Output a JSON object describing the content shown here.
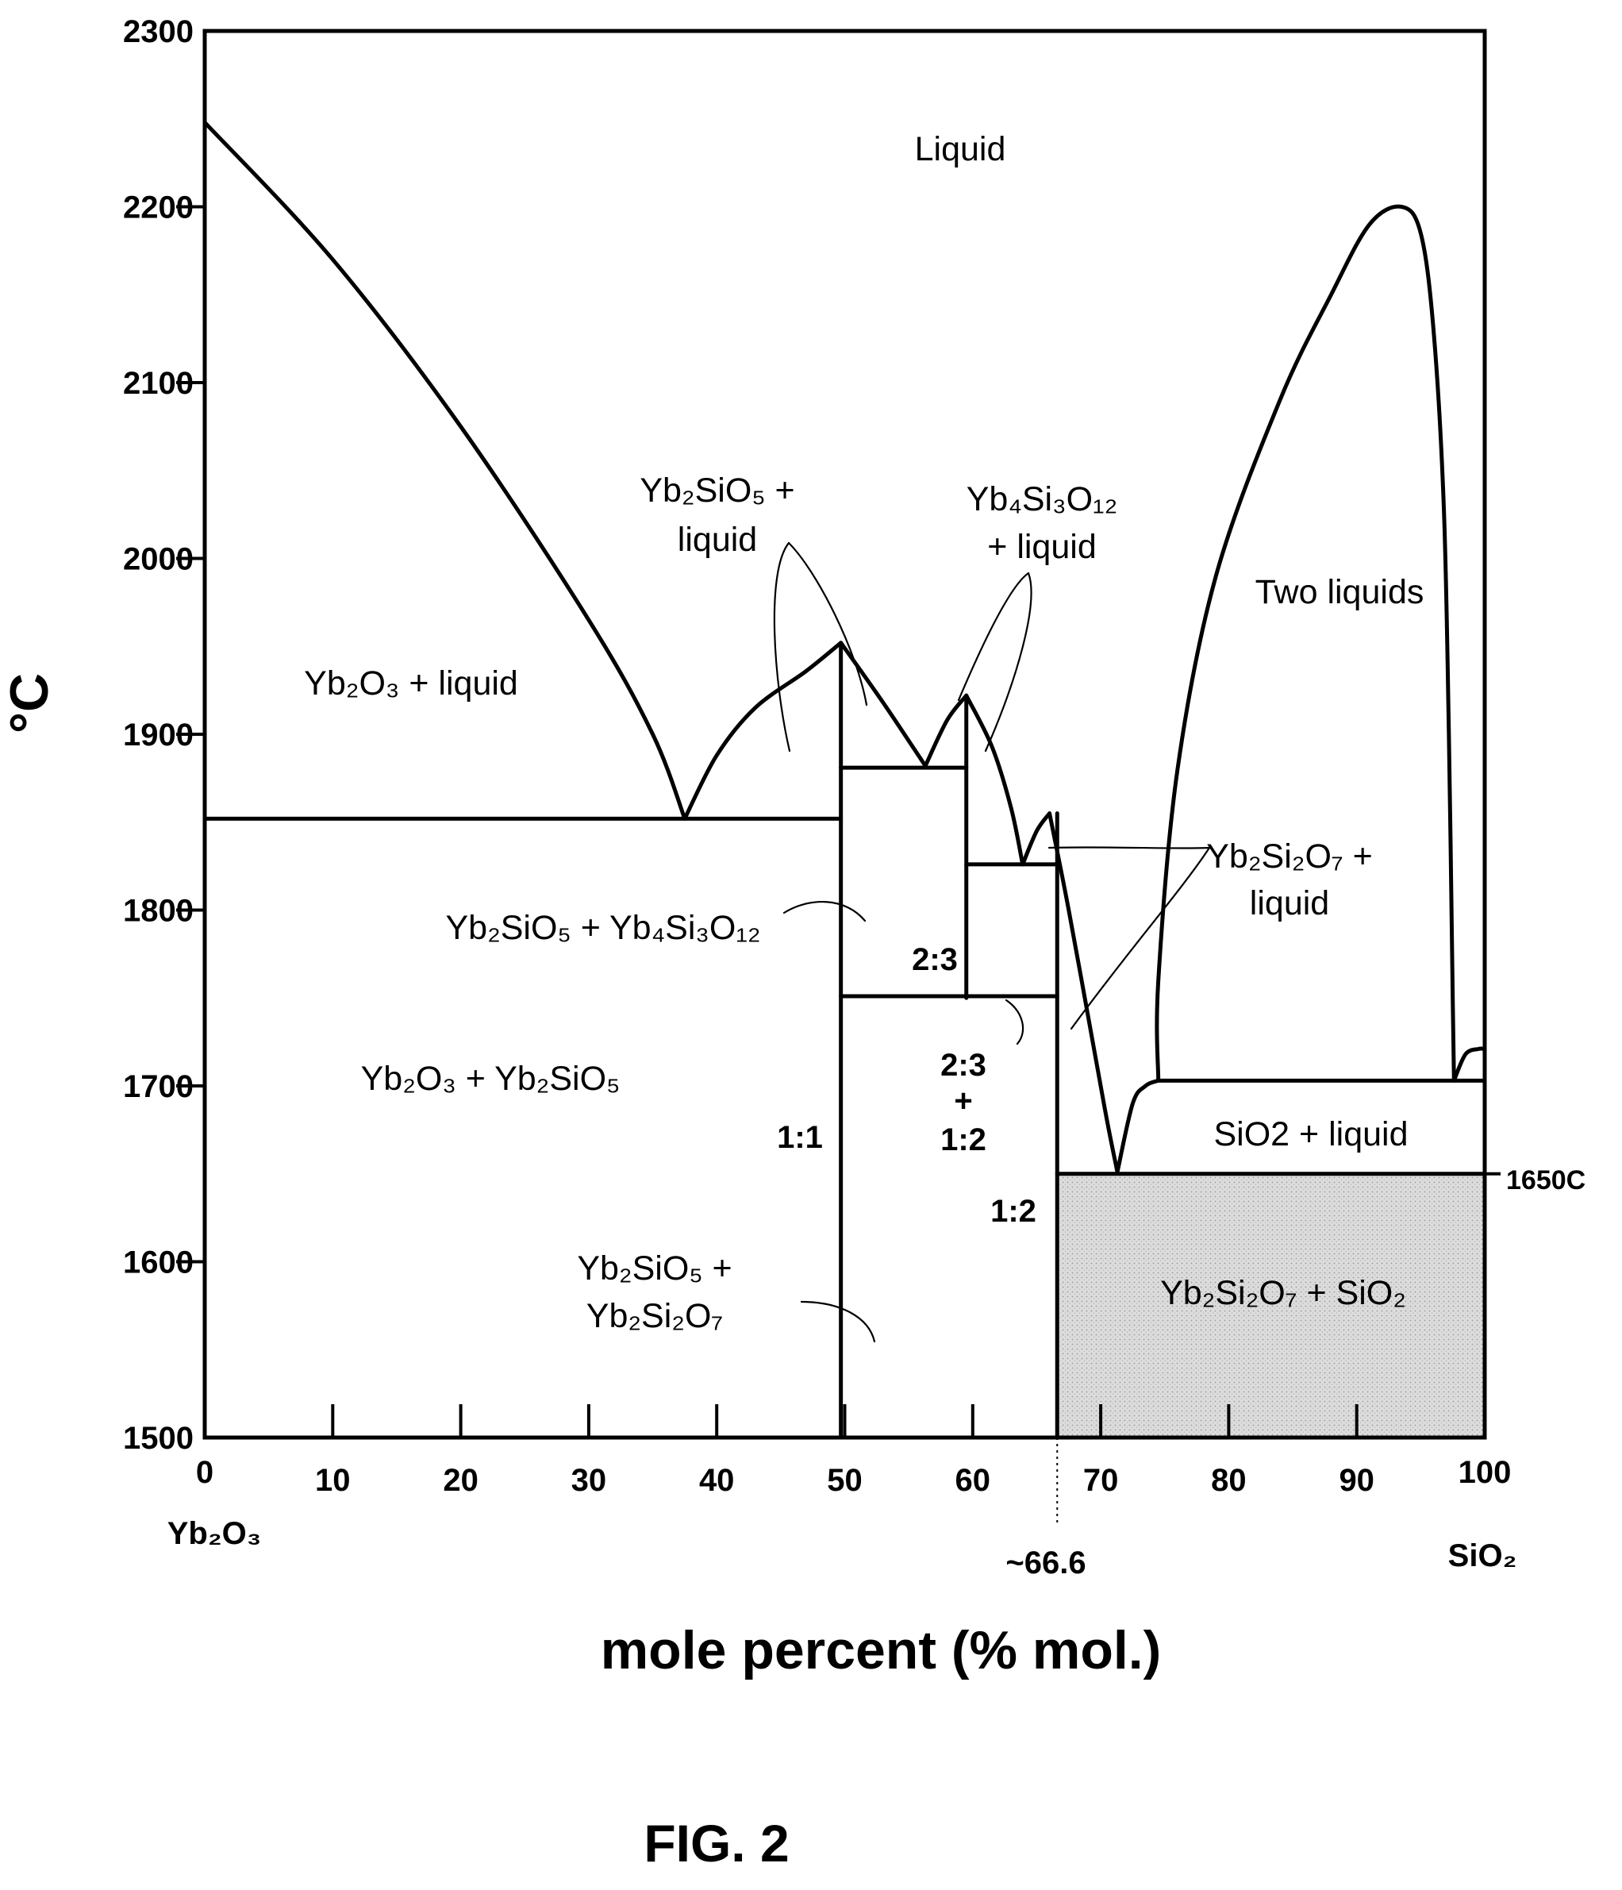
{
  "chart_data": {
    "type": "phase-diagram",
    "xlabel": "mole percent (% mol.)",
    "ylabel": "°C",
    "xlim": [
      0,
      100
    ],
    "ylim": [
      1500,
      2300
    ],
    "x_ticks": [
      "0",
      "10",
      "20",
      "30",
      "40",
      "50",
      "60",
      "70",
      "80",
      "90",
      "100"
    ],
    "y_ticks": [
      "1500",
      "1600",
      "1700",
      "1800",
      "1900",
      "2000",
      "2100",
      "2200",
      "2300"
    ],
    "left_component": "Yb2O3",
    "right_component": "SiO2",
    "composition_marker": {
      "x": 66.6,
      "label": "~66.6"
    },
    "temperature_marker": {
      "y": 1650,
      "label": "1650C"
    },
    "shaded_region": {
      "x": [
        66.6,
        100
      ],
      "y": [
        1500,
        1650
      ],
      "color": "#d9d9d9"
    },
    "boundaries": [
      {
        "name": "liquidus-Yb2O3",
        "points": [
          [
            0,
            2248
          ],
          [
            10,
            2170
          ],
          [
            20,
            2075
          ],
          [
            30,
            1965
          ],
          [
            35,
            1900
          ],
          [
            37.5,
            1852
          ]
        ]
      },
      {
        "name": "liquidus-Yb2SiO5-left",
        "points": [
          [
            37.5,
            1852
          ],
          [
            40,
            1888
          ],
          [
            43,
            1915
          ],
          [
            47,
            1936
          ],
          [
            49.7,
            1952
          ]
        ]
      },
      {
        "name": "liquidus-Yb2SiO5-right",
        "points": [
          [
            49.7,
            1952
          ],
          [
            53,
            1918
          ],
          [
            56.3,
            1882
          ]
        ]
      },
      {
        "name": "liquidus-Yb4Si3O12-left",
        "points": [
          [
            56.3,
            1882
          ],
          [
            58,
            1908
          ],
          [
            59.5,
            1922
          ]
        ]
      },
      {
        "name": "liquidus-Yb4Si3O12-right",
        "points": [
          [
            59.5,
            1922
          ],
          [
            61.5,
            1893
          ],
          [
            63,
            1858
          ],
          [
            63.9,
            1826
          ]
        ]
      },
      {
        "name": "liquidus-Yb2Si2O7-left",
        "points": [
          [
            63.9,
            1826
          ],
          [
            65,
            1845
          ],
          [
            66,
            1855
          ]
        ]
      },
      {
        "name": "liquidus-Yb2Si2O7-right",
        "points": [
          [
            66,
            1855
          ],
          [
            67.5,
            1800
          ],
          [
            69.5,
            1720
          ],
          [
            70.5,
            1680
          ],
          [
            71.3,
            1651
          ]
        ]
      },
      {
        "name": "liquidus-SiO2",
        "points": [
          [
            71.3,
            1651
          ],
          [
            72.5,
            1690
          ],
          [
            73.5,
            1700
          ],
          [
            74.5,
            1703
          ]
        ]
      },
      {
        "name": "miscibility-gap",
        "points": [
          [
            74.5,
            1703
          ],
          [
            74.5,
            1760
          ],
          [
            76,
            1880
          ],
          [
            79,
            1990
          ],
          [
            84,
            2090
          ],
          [
            88,
            2150
          ],
          [
            91,
            2190
          ],
          [
            93.5,
            2200
          ],
          [
            95,
            2185
          ],
          [
            96,
            2130
          ],
          [
            96.8,
            2030
          ],
          [
            97.2,
            1900
          ],
          [
            97.5,
            1750
          ],
          [
            97.6,
            1703
          ]
        ]
      },
      {
        "name": "liquidus-SiO2-high",
        "points": [
          [
            97.6,
            1703
          ],
          [
            98.5,
            1718
          ],
          [
            99.5,
            1721
          ],
          [
            100,
            1721
          ]
        ]
      },
      {
        "name": "eutectic-1852",
        "points": [
          [
            0,
            1852
          ],
          [
            49.7,
            1852
          ]
        ]
      },
      {
        "name": "line-1:1",
        "points": [
          [
            49.7,
            1952
          ],
          [
            49.7,
            1500
          ]
        ]
      },
      {
        "name": "peritectic-1882",
        "points": [
          [
            49.7,
            1881
          ],
          [
            59.5,
            1881
          ]
        ]
      },
      {
        "name": "line-2:3",
        "points": [
          [
            59.5,
            1922
          ],
          [
            59.5,
            1750
          ]
        ]
      },
      {
        "name": "eutectic-1826",
        "points": [
          [
            59.5,
            1826
          ],
          [
            66.6,
            1826
          ]
        ]
      },
      {
        "name": "decomposition-1750",
        "points": [
          [
            49.7,
            1751
          ],
          [
            66.6,
            1751
          ]
        ]
      },
      {
        "name": "line-1:2",
        "points": [
          [
            66.6,
            1855
          ],
          [
            66.6,
            1500
          ]
        ]
      },
      {
        "name": "eutectic-1650",
        "points": [
          [
            66.6,
            1650
          ],
          [
            100,
            1650
          ]
        ]
      },
      {
        "name": "monotectic-1703",
        "points": [
          [
            74.5,
            1703
          ],
          [
            100,
            1703
          ]
        ]
      }
    ],
    "compound_labels": [
      "1:1",
      "2:3",
      "1:2"
    ],
    "region_labels": {
      "liquid": "Liquid",
      "two_liquids": "Two liquids",
      "yb2o3_liquid": "Yb₂O₃ + liquid",
      "yb2sio5_liquid_1": "Yb₂SiO₅ +",
      "yb2sio5_liquid_2": "liquid",
      "yb4si3o12_liquid_1": "Yb₄Si₃O₁₂",
      "yb4si3o12_liquid_2": "+ liquid",
      "yb2si2o7_liquid_1": "Yb₂Si₂O₇ +",
      "yb2si2o7_liquid_2": "liquid",
      "yb2sio5_yb4si3o12": "Yb₂SiO₅ + Yb₄Si₃O₁₂",
      "yb2o3_yb2sio5": "Yb₂O₃ + Yb₂SiO₅",
      "yb2sio5_yb2si2o7_1": "Yb₂SiO₅ +",
      "yb2sio5_yb2si2o7_2": "Yb₂Si₂O₇",
      "sio2_liquid": "SiO2 + liquid",
      "yb2si2o7_sio2": "Yb₂Si₂O₇ + SiO₂",
      "mix_23_12_a": "2:3",
      "mix_23_12_b": "+",
      "mix_23_12_c": "1:2"
    },
    "axis_end_labels": {
      "left": "Yb₂O₃",
      "right": "SiO₂"
    },
    "grid": false
  },
  "figure_label": "FIG. 2"
}
